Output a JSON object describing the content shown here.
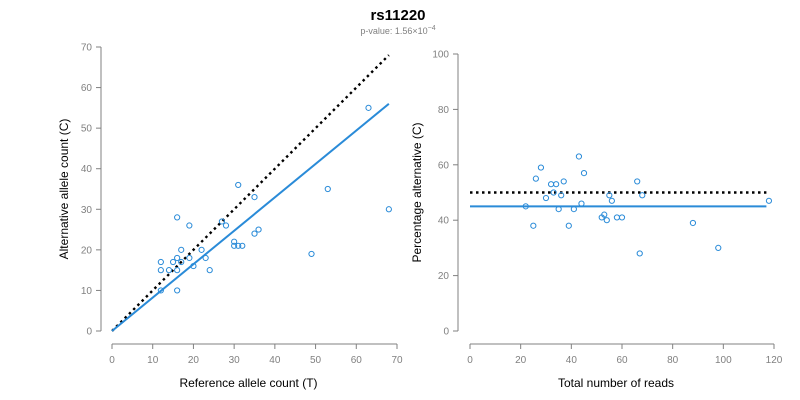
{
  "title": "rs11220",
  "subtitle_prefix": "p-value: 1.56×10",
  "subtitle_exponent": "−4",
  "colors": {
    "points": "#2a8bd8",
    "fit": "#2a8bd8",
    "expected": "#000000",
    "axis": "#808080"
  },
  "chart_data": [
    {
      "type": "scatter",
      "xlabel": "Reference allele count (T)",
      "ylabel": "Alternative allele count (C)",
      "xlim": [
        0,
        70
      ],
      "ylim": [
        0,
        70
      ],
      "xticks": [
        0,
        10,
        20,
        30,
        40,
        50,
        60,
        70
      ],
      "yticks": [
        0,
        10,
        20,
        30,
        40,
        50,
        60,
        70
      ],
      "points": [
        [
          12,
          10
        ],
        [
          12,
          15
        ],
        [
          12,
          17
        ],
        [
          14,
          15
        ],
        [
          15,
          17
        ],
        [
          16,
          10
        ],
        [
          16,
          15
        ],
        [
          16,
          18
        ],
        [
          16,
          28
        ],
        [
          17,
          17
        ],
        [
          17,
          20
        ],
        [
          19,
          18
        ],
        [
          19,
          26
        ],
        [
          20,
          16
        ],
        [
          22,
          20
        ],
        [
          23,
          18
        ],
        [
          24,
          15
        ],
        [
          27,
          27
        ],
        [
          28,
          26
        ],
        [
          30,
          21
        ],
        [
          30,
          22
        ],
        [
          31,
          21
        ],
        [
          31,
          36
        ],
        [
          32,
          21
        ],
        [
          35,
          24
        ],
        [
          35,
          33
        ],
        [
          36,
          25
        ],
        [
          49,
          19
        ],
        [
          53,
          35
        ],
        [
          63,
          55
        ],
        [
          68,
          30
        ]
      ],
      "expected_line": [
        [
          0,
          0
        ],
        [
          68,
          68
        ]
      ],
      "fit_line": [
        [
          0,
          0
        ],
        [
          68,
          56
        ]
      ]
    },
    {
      "type": "scatter",
      "xlabel": "Total number of reads",
      "ylabel": "Percentage alternative (C)",
      "xlim": [
        0,
        120
      ],
      "ylim": [
        0,
        100
      ],
      "xticks": [
        0,
        20,
        40,
        60,
        80,
        100,
        120
      ],
      "yticks": [
        0,
        20,
        40,
        60,
        80,
        100
      ],
      "points": [
        [
          22,
          45
        ],
        [
          25,
          38
        ],
        [
          26,
          55
        ],
        [
          28,
          59
        ],
        [
          30,
          48
        ],
        [
          32,
          53
        ],
        [
          33,
          50
        ],
        [
          34,
          53
        ],
        [
          35,
          44
        ],
        [
          36,
          49
        ],
        [
          37,
          54
        ],
        [
          39,
          38
        ],
        [
          41,
          44
        ],
        [
          43,
          63
        ],
        [
          44,
          46
        ],
        [
          45,
          57
        ],
        [
          52,
          41
        ],
        [
          53,
          42
        ],
        [
          54,
          40
        ],
        [
          55,
          49
        ],
        [
          56,
          47
        ],
        [
          58,
          41
        ],
        [
          60,
          41
        ],
        [
          66,
          54
        ],
        [
          67,
          28
        ],
        [
          68,
          49
        ],
        [
          88,
          39
        ],
        [
          98,
          30
        ],
        [
          118,
          47
        ]
      ],
      "expected_line": [
        [
          0,
          50
        ],
        [
          117,
          50
        ]
      ],
      "fit_line": [
        [
          0,
          45
        ],
        [
          117,
          45
        ]
      ]
    }
  ]
}
